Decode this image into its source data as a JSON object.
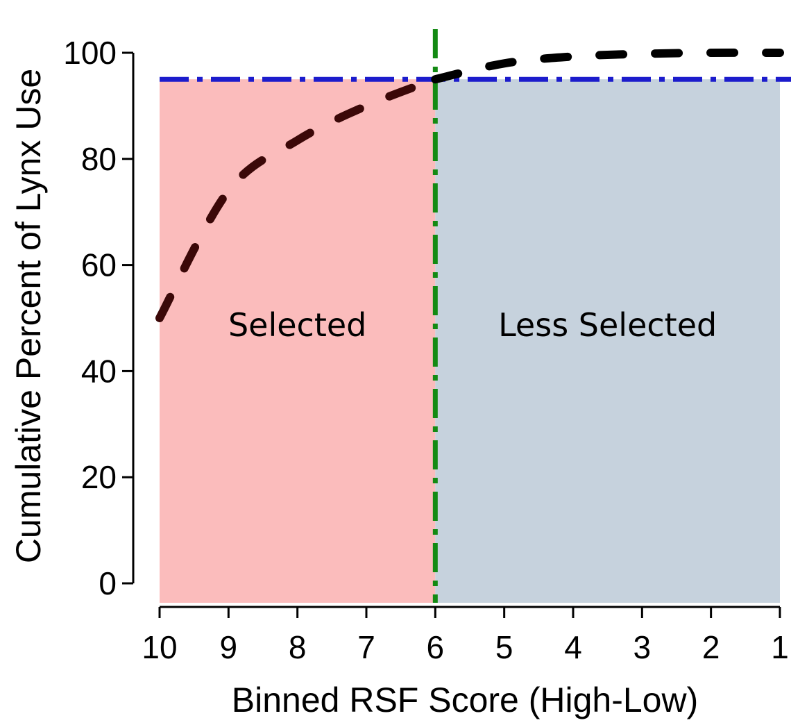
{
  "chart_data": {
    "type": "line",
    "title": "",
    "xlabel": "Binned RSF Score (High-Low)",
    "ylabel": "Cumulative Percent of Lynx Use",
    "x_ticks": [
      "10",
      "9",
      "8",
      "7",
      "6",
      "5",
      "4",
      "3",
      "2",
      "1"
    ],
    "y_ticks": [
      "0",
      "20",
      "40",
      "60",
      "80",
      "100"
    ],
    "xlim": [
      10,
      1
    ],
    "ylim": [
      0,
      100
    ],
    "x_reversed": true,
    "grid": false,
    "series": [
      {
        "style": "dashed",
        "x": [
          10,
          9,
          8,
          7,
          6,
          5,
          4,
          3,
          2,
          1
        ],
        "y": [
          50,
          74,
          83.5,
          90,
          95,
          98,
          99.3,
          99.8,
          100,
          100
        ],
        "colors": {
          "selected_part": "#3b0808",
          "less_selected_part": "#000000"
        }
      }
    ],
    "reference_lines": [
      {
        "orientation": "horizontal",
        "value": 95,
        "style": "dash-dot",
        "color": "#1c1ccc"
      },
      {
        "orientation": "vertical",
        "value": 6,
        "style": "dash-dot",
        "color": "#138a13"
      }
    ],
    "regions": [
      {
        "label": "Selected",
        "x_from": 10,
        "x_to": 6,
        "y_from": 0,
        "y_to": 95,
        "color": "#fbbcbc"
      },
      {
        "label": "Less Selected",
        "x_from": 6,
        "x_to": 1,
        "y_from": 0,
        "y_to": 95,
        "color": "#c6d2dd"
      }
    ]
  }
}
